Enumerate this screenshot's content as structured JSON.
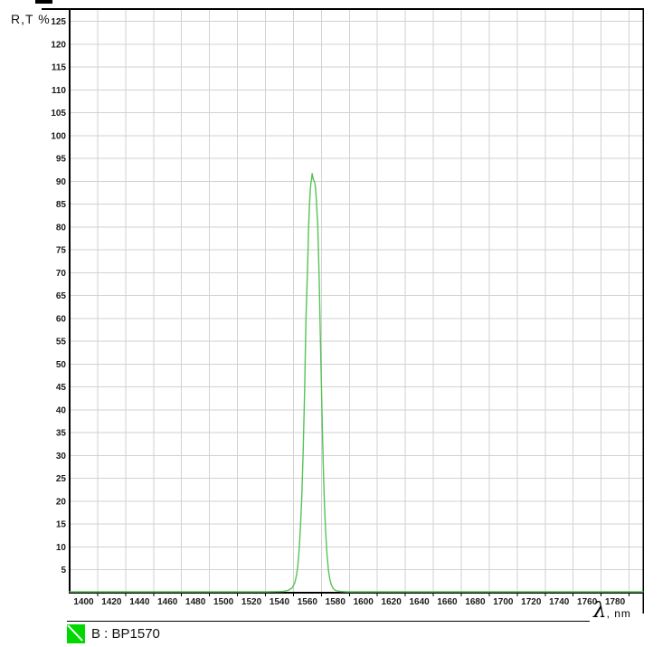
{
  "chart": {
    "y_axis_title": "R,T %",
    "x_axis_symbol": "λ",
    "x_axis_unit": ", nm",
    "legend": {
      "series_label": "B : BP1570"
    }
  },
  "colors": {
    "curve": "#55c455",
    "legend_swatch": "#00d800",
    "legend_swatch_stripe": "#ffffff",
    "grid": "#d2d2d2",
    "axis": "#000000",
    "tick_text": "#1a1a1a"
  },
  "chart_data": {
    "type": "line",
    "title": "",
    "xlabel": "λ, nm",
    "ylabel": "R,T %",
    "xlim": [
      1390,
      1800
    ],
    "ylim": [
      0,
      127.7
    ],
    "grid": true,
    "legend_position": "bottom-left",
    "x_ticks": [
      1400,
      1420,
      1440,
      1460,
      1480,
      1500,
      1520,
      1540,
      1560,
      1580,
      1600,
      1620,
      1640,
      1660,
      1680,
      1700,
      1720,
      1740,
      1760,
      1780
    ],
    "y_ticks": [
      5,
      10,
      15,
      20,
      25,
      30,
      35,
      40,
      45,
      50,
      55,
      60,
      65,
      70,
      75,
      80,
      85,
      90,
      95,
      100,
      105,
      110,
      115,
      120,
      125
    ],
    "series": [
      {
        "name": "B : BP1570",
        "color": "#55c455",
        "points": [
          [
            1390,
            0.2
          ],
          [
            1450,
            0.2
          ],
          [
            1500,
            0.2
          ],
          [
            1530,
            0.2
          ],
          [
            1540,
            0.25
          ],
          [
            1543,
            0.3
          ],
          [
            1546,
            0.5
          ],
          [
            1549,
            1.0
          ],
          [
            1551,
            2.2
          ],
          [
            1552,
            3.5
          ],
          [
            1553,
            5.5
          ],
          [
            1554,
            9
          ],
          [
            1555,
            14
          ],
          [
            1556,
            21
          ],
          [
            1557,
            31
          ],
          [
            1558,
            44
          ],
          [
            1559,
            60
          ],
          [
            1560,
            70
          ],
          [
            1560.5,
            76
          ],
          [
            1561,
            81
          ],
          [
            1561.5,
            85
          ],
          [
            1562,
            87.8
          ],
          [
            1562.5,
            89.6
          ],
          [
            1563,
            90.5
          ],
          [
            1563.4,
            91.7
          ],
          [
            1563.9,
            91.0
          ],
          [
            1564.3,
            90.3
          ],
          [
            1565,
            90.0
          ],
          [
            1565.6,
            89.2
          ],
          [
            1566.2,
            86.8
          ],
          [
            1566.8,
            83.5
          ],
          [
            1567.4,
            80.5
          ],
          [
            1568,
            74
          ],
          [
            1568.6,
            66
          ],
          [
            1569.2,
            57
          ],
          [
            1569.9,
            47
          ],
          [
            1570.6,
            37
          ],
          [
            1571.3,
            28
          ],
          [
            1572.1,
            20
          ],
          [
            1573,
            13.5
          ],
          [
            1574,
            8.5
          ],
          [
            1575,
            5
          ],
          [
            1576,
            3
          ],
          [
            1577,
            1.8
          ],
          [
            1578.5,
            0.9
          ],
          [
            1580,
            0.5
          ],
          [
            1583,
            0.3
          ],
          [
            1588,
            0.2
          ],
          [
            1620,
            0.2
          ],
          [
            1700,
            0.2
          ],
          [
            1800,
            0.2
          ]
        ]
      }
    ]
  }
}
